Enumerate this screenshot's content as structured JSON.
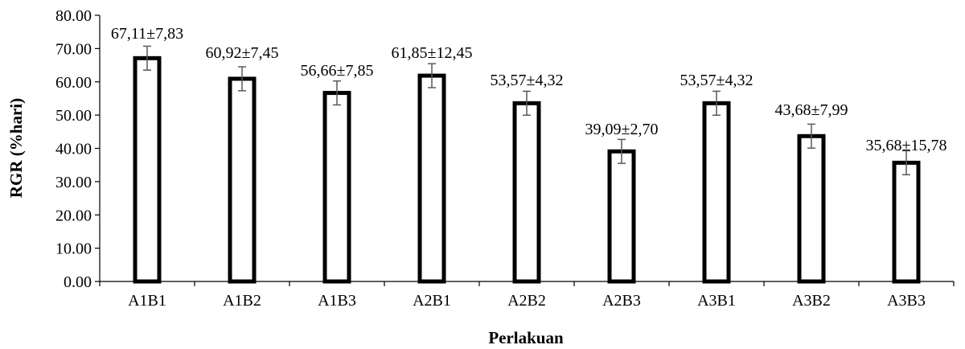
{
  "chart_data": {
    "type": "bar",
    "title": "",
    "xlabel": "Perlakuan",
    "ylabel": "RGR (%hari)",
    "ylim": [
      0,
      80
    ],
    "ytick_labels": [
      "0.00",
      "10.00",
      "20.00",
      "30.00",
      "40.00",
      "50.00",
      "60.00",
      "70.00",
      "80.00"
    ],
    "ytick_values": [
      0,
      10,
      20,
      30,
      40,
      50,
      60,
      70,
      80
    ],
    "categories": [
      "A1B1",
      "A1B2",
      "A1B3",
      "A2B1",
      "A2B2",
      "A2B3",
      "A3B1",
      "A3B2",
      "A3B3"
    ],
    "values": [
      67.11,
      60.92,
      56.66,
      61.85,
      53.57,
      39.09,
      53.57,
      43.68,
      35.68
    ],
    "error_bar_extent": [
      3.6,
      3.6,
      3.6,
      3.6,
      3.6,
      3.6,
      3.6,
      3.6,
      3.6
    ],
    "data_labels": [
      "67,11±7,83",
      "60,92±7,45",
      "56,66±7,85",
      "61,85±12,45",
      "53,57±4,32",
      "39,09±2,70",
      "53,57±4,32",
      "43,68±7,99",
      "35,68±15,78"
    ],
    "grid": false,
    "legend": "none",
    "colors": {
      "bar_fill": "#ffffff",
      "bar_stroke": "#000000",
      "error_bar": "#595959",
      "axis": "#000000"
    }
  }
}
